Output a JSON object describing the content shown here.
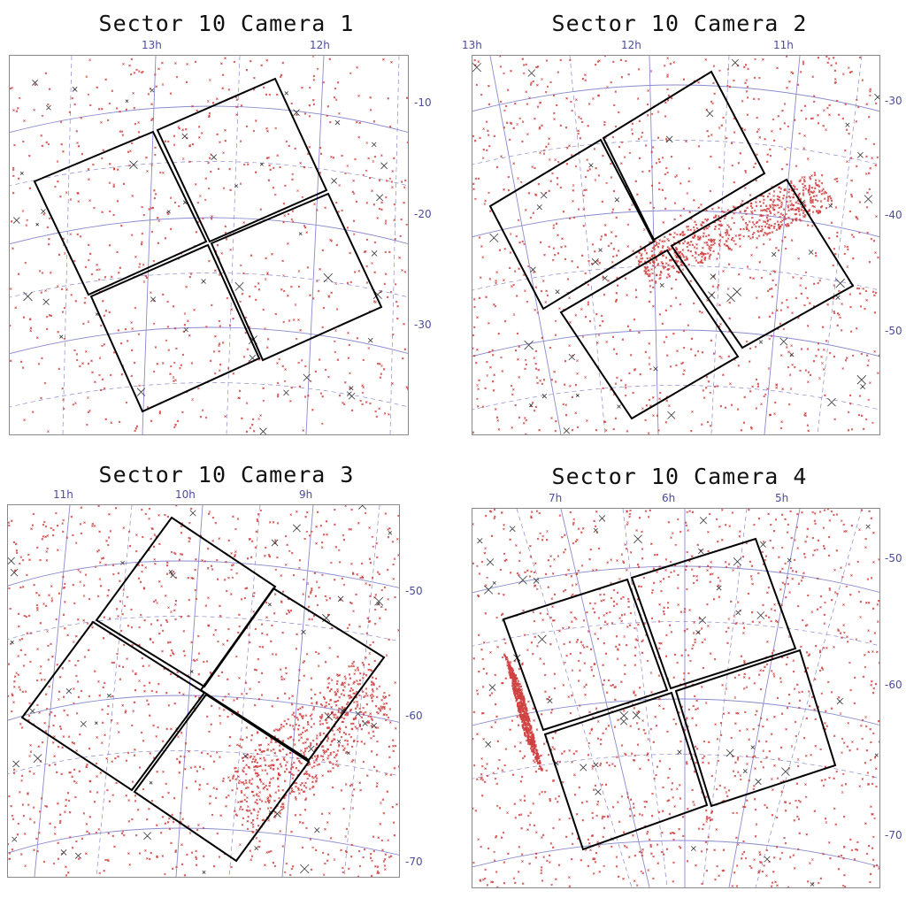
{
  "colors": {
    "grid": "#8a8ad0",
    "star": "#d04040",
    "bright": "#333333",
    "ccd": "#000000",
    "label": "#4b4ba0"
  },
  "panels": [
    {
      "title": "Sector 10 Camera 1",
      "ra_labels": [
        "13h",
        "12h"
      ],
      "dec_labels": [
        "-10",
        "-20",
        "-30"
      ],
      "star_density": 0.55
    },
    {
      "title": "Sector 10 Camera 2",
      "ra_labels": [
        "13h",
        "12h",
        "11h"
      ],
      "dec_labels": [
        "-30",
        "-40",
        "-50"
      ],
      "star_density": 0.75
    },
    {
      "title": "Sector 10 Camera 3",
      "ra_labels": [
        "11h",
        "10h",
        "9h"
      ],
      "dec_labels": [
        "-50",
        "-60",
        "-70"
      ],
      "star_density": 0.85
    },
    {
      "title": "Sector 10 Camera 4",
      "ra_labels": [
        "7h",
        "6h",
        "5h"
      ],
      "dec_labels": [
        "-50",
        "-60",
        "-70"
      ],
      "star_density": 1.0
    }
  ]
}
